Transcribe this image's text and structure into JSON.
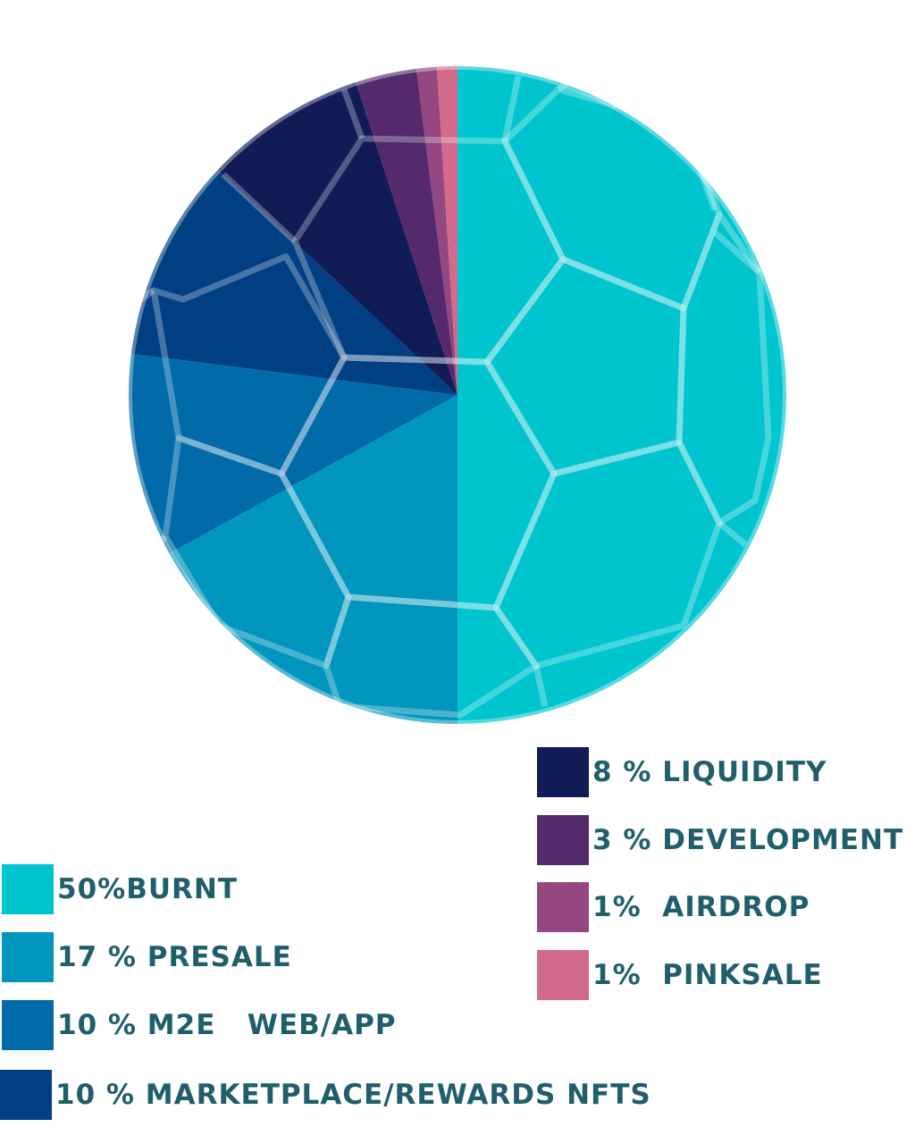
{
  "chart_data": {
    "type": "pie",
    "slices": [
      {
        "label": "50%BURNT",
        "value": 50,
        "color": "#00c5cf"
      },
      {
        "label": "17 % PRESALE",
        "value": 17,
        "color": "#0096bd"
      },
      {
        "label": "10 % M2E   WEB/APP",
        "value": 10,
        "color": "#006ba8"
      },
      {
        "label": "10 % MARKETPLACE/REWARDS NFTS",
        "value": 10,
        "color": "#003f81"
      },
      {
        "label": "8 % LIQUIDITY",
        "value": 8,
        "color": "#111b56"
      },
      {
        "label": "3 % DEVELOPMENT",
        "value": 3,
        "color": "#542a6c"
      },
      {
        "label": "1%  AIRDROP",
        "value": 1,
        "color": "#944780"
      },
      {
        "label": "1%  PINKSALE",
        "value": 1,
        "color": "#d26a8b"
      }
    ],
    "start": "top",
    "direction": "clockwise",
    "overlay": "soccer-ball-pattern"
  }
}
